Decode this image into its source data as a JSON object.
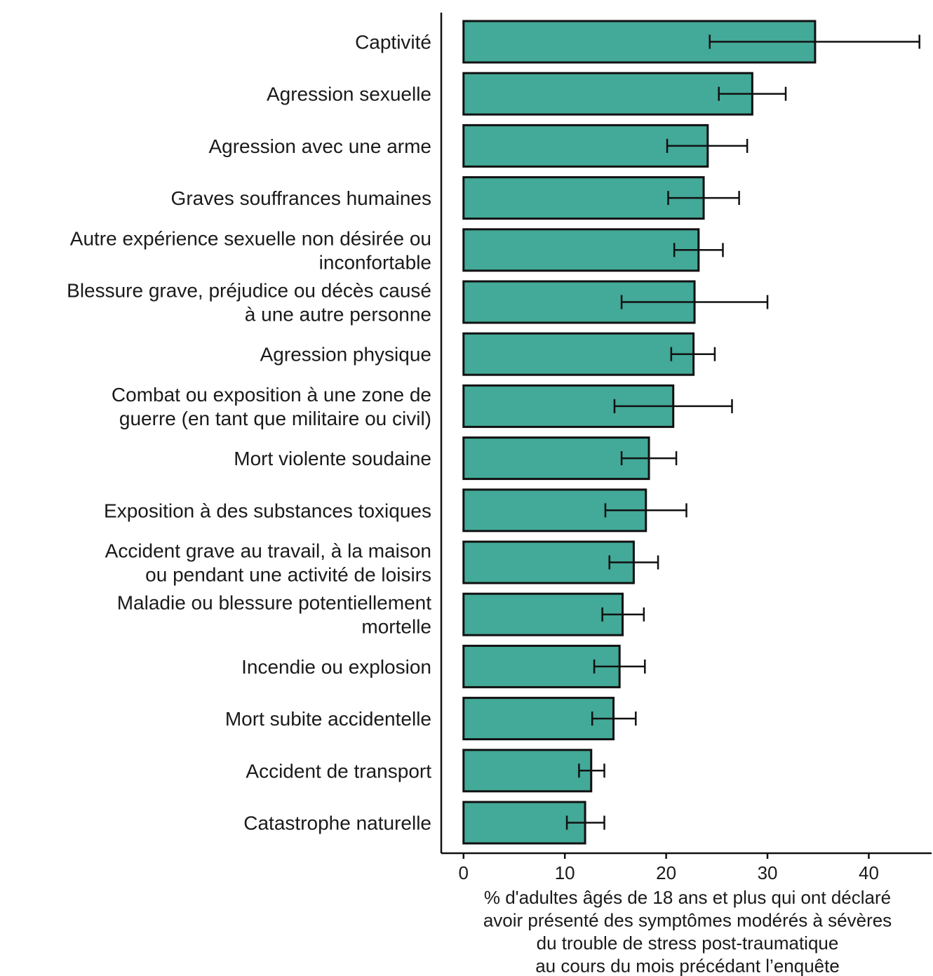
{
  "chart_data": {
    "type": "bar",
    "orientation": "horizontal",
    "categories": [
      "Captivité",
      "Agression sexuelle",
      "Agression avec une arme",
      "Graves souffrances humaines",
      "Autre expérience sexuelle non désirée ou inconfortable",
      "Blessure grave, préjudice ou décès causé à une autre personne",
      "Agression physique",
      "Combat ou exposition à une zone de guerre (en tant que militaire ou civil)",
      "Mort violente soudaine",
      "Exposition à des substances toxiques",
      "Accident grave au travail, à la maison ou pendant une activité de loisirs",
      "Maladie ou blessure potentiellement mortelle",
      "Incendie ou explosion",
      "Mort subite accidentelle",
      "Accident de transport",
      "Catastrophe naturelle"
    ],
    "category_lines": [
      [
        "Captivité"
      ],
      [
        "Agression sexuelle"
      ],
      [
        "Agression avec une arme"
      ],
      [
        "Graves souffrances humaines"
      ],
      [
        "Autre expérience sexuelle non désirée ou",
        "inconfortable"
      ],
      [
        "Blessure grave, préjudice ou décès causé",
        "à une autre personne"
      ],
      [
        "Agression physique"
      ],
      [
        "Combat ou exposition à une zone de",
        "guerre (en tant que militaire ou civil)"
      ],
      [
        "Mort violente soudaine"
      ],
      [
        "Exposition à des substances toxiques"
      ],
      [
        "Accident grave au travail, à la maison",
        "ou pendant une activité de loisirs"
      ],
      [
        "Maladie ou blessure potentiellement",
        "mortelle"
      ],
      [
        "Incendie ou explosion"
      ],
      [
        "Mort subite accidentelle"
      ],
      [
        "Accident de transport"
      ],
      [
        "Catastrophe naturelle"
      ]
    ],
    "values": [
      34.7,
      28.5,
      24.1,
      23.7,
      23.2,
      22.8,
      22.7,
      20.7,
      18.3,
      18.0,
      16.8,
      15.7,
      15.4,
      14.8,
      12.6,
      12.0
    ],
    "error_low": [
      24.3,
      25.2,
      20.1,
      20.2,
      20.8,
      15.6,
      20.5,
      14.9,
      15.6,
      14.0,
      14.4,
      13.7,
      12.9,
      12.7,
      11.4,
      10.2
    ],
    "error_high": [
      45.0,
      31.8,
      28.0,
      27.2,
      25.6,
      30.0,
      24.8,
      26.5,
      21.0,
      22.0,
      19.2,
      17.8,
      17.9,
      17.0,
      13.9,
      13.9
    ],
    "xlim": [
      -2.2,
      46.2
    ],
    "xticks": [
      0,
      10,
      20,
      30,
      40
    ],
    "xlabel_lines": [
      "% d'adultes âgés de 18 ans et plus qui ont déclaré",
      "avoir présenté des symptômes modérés à sévères",
      "du trouble de stress post-traumatique",
      "au cours du mois précédant l’enquête"
    ],
    "bar_color": "#43a998",
    "grid": false,
    "legend": "none"
  }
}
